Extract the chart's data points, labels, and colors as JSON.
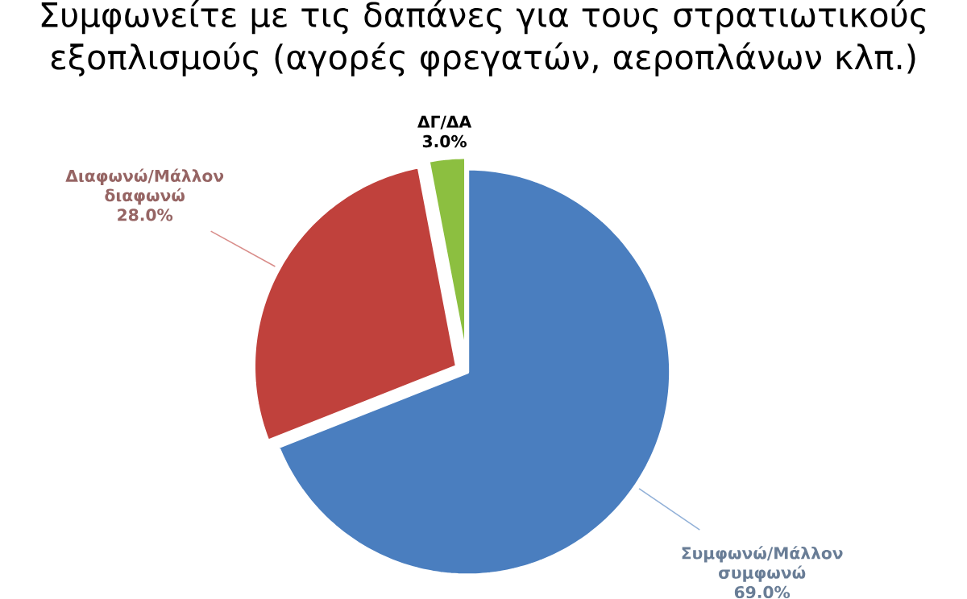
{
  "chart_data": {
    "type": "pie",
    "title": "Συμφωνείτε με τις δαπάνες για τους στρατιωτικούς εξοπλισμούς (αγορές φρεγατών, αεροπλάνων κλπ.)",
    "categories": [
      "Συμφωνώ/Μάλλον συμφωνώ",
      "Διαφωνώ/Μάλλον διαφωνώ",
      "ΔΓ/ΔΑ"
    ],
    "values": [
      69,
      28,
      3
    ],
    "colors": [
      "#4a7ebf",
      "#c0413c",
      "#8cbf40"
    ],
    "value_labels": [
      "69.0%",
      "28.0%",
      "3.0%"
    ]
  }
}
